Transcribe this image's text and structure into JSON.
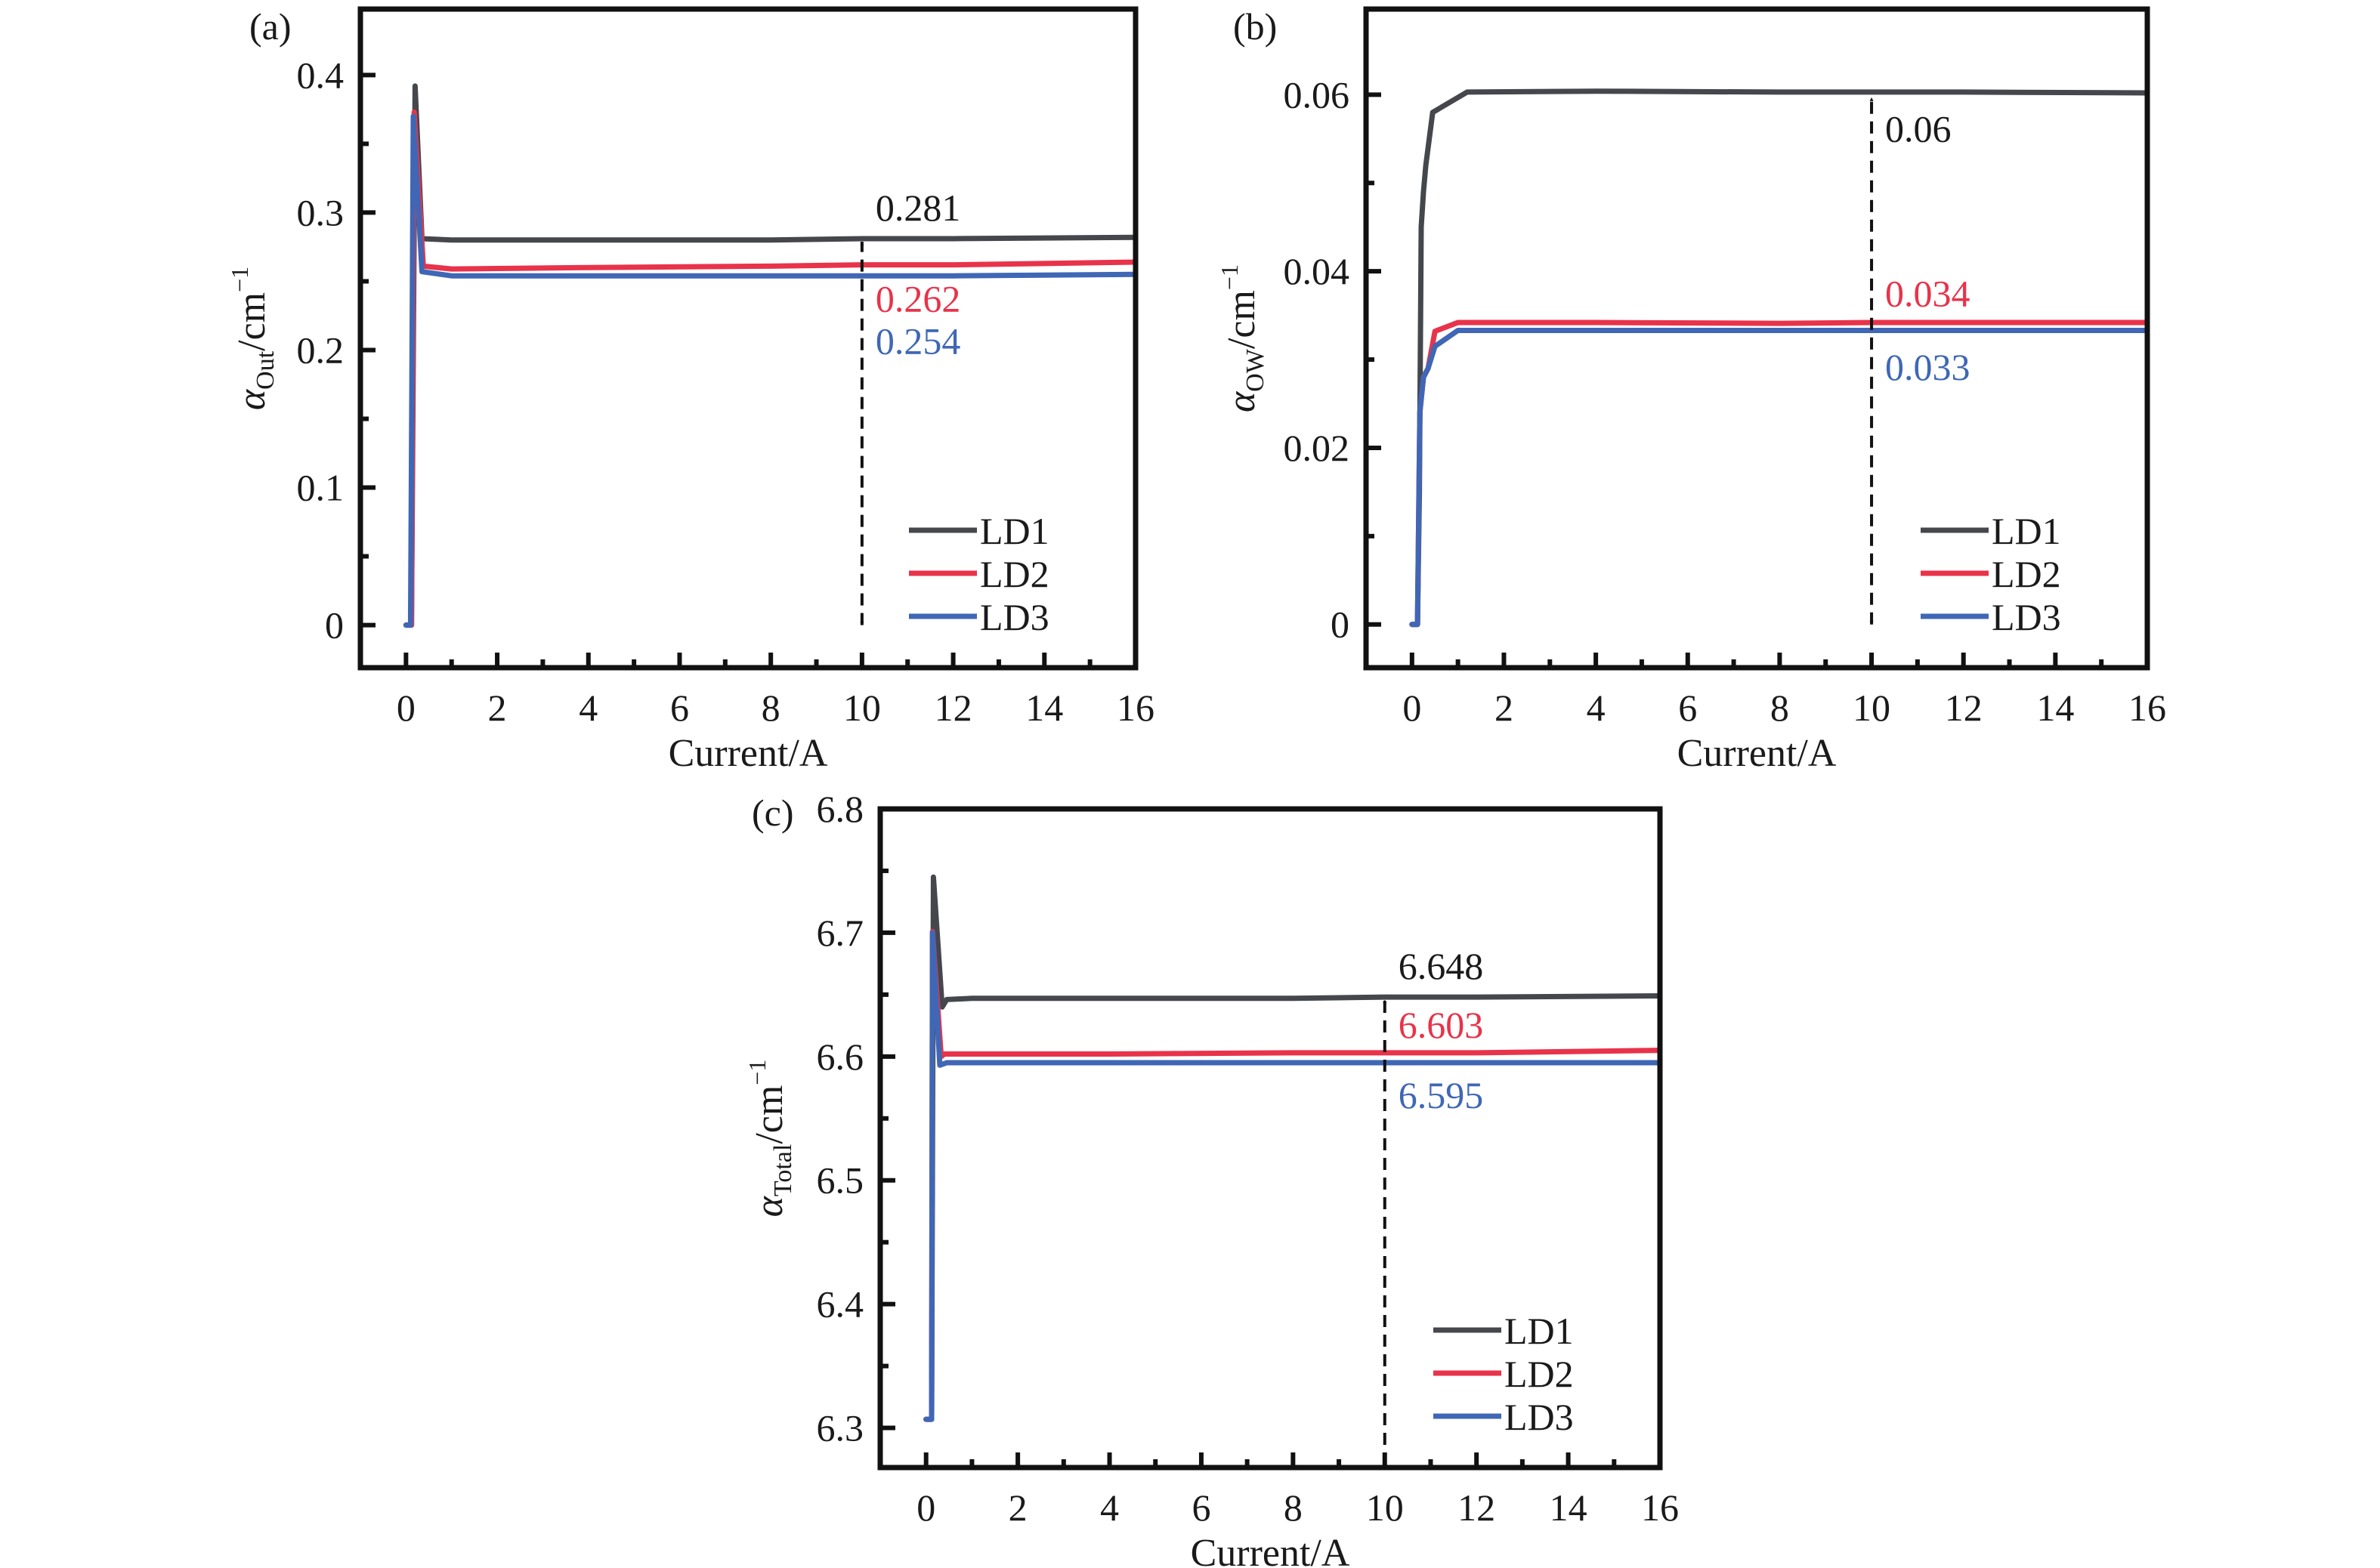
{
  "figure": {
    "colors": {
      "LD1": "#45474d",
      "LD2": "#e8334a",
      "LD3": "#3f67b5",
      "axis": "#111111"
    }
  },
  "chart_data": [
    {
      "type": "line",
      "panel_label": "(a)",
      "title": "",
      "xlabel": "Current/A",
      "ylabel": {
        "symbol": "α",
        "subscript": "Out",
        "unit": "/cm",
        "superscript": "−1"
      },
      "xlim": [
        -1,
        16
      ],
      "ylim": [
        -0.031,
        0.448
      ],
      "xticks": [
        0,
        2,
        4,
        6,
        8,
        10,
        12,
        14,
        16
      ],
      "xtick_labels": [
        "0",
        "2",
        "4",
        "6",
        "8",
        "10",
        "12",
        "14",
        "16"
      ],
      "yticks": [
        0,
        0.1,
        0.2,
        0.3,
        0.4
      ],
      "ytick_labels": [
        "0",
        "0.1",
        "0.2",
        "0.3",
        "0.4"
      ],
      "grid": false,
      "legend": {
        "placement": "bottom-right",
        "entries": [
          "LD1",
          "LD2",
          "LD3"
        ]
      },
      "series": [
        {
          "name": "LD1",
          "x": [
            0,
            0.12,
            0.2,
            0.35,
            1,
            4,
            8,
            10,
            12,
            16
          ],
          "y": [
            0,
            0,
            0.392,
            0.281,
            0.28,
            0.28,
            0.28,
            0.281,
            0.281,
            0.282
          ]
        },
        {
          "name": "LD2",
          "x": [
            0,
            0.12,
            0.18,
            0.38,
            1,
            4,
            8,
            10,
            12,
            16
          ],
          "y": [
            0,
            0,
            0.373,
            0.261,
            0.259,
            0.26,
            0.261,
            0.262,
            0.262,
            0.264
          ]
        },
        {
          "name": "LD3",
          "x": [
            0,
            0.1,
            0.16,
            0.35,
            1,
            4,
            8,
            10,
            12,
            16
          ],
          "y": [
            0,
            0,
            0.37,
            0.257,
            0.254,
            0.254,
            0.254,
            0.254,
            0.254,
            0.255
          ]
        }
      ],
      "annotations": [
        {
          "text": "0.281",
          "series": "LD1",
          "x": 10,
          "y": 0.281,
          "position": "above"
        },
        {
          "text": "0.262",
          "series": "LD2",
          "x": 10,
          "y": 0.262,
          "position": "below"
        },
        {
          "text": "0.254",
          "series": "LD3",
          "x": 10,
          "y": 0.254,
          "position": "below"
        }
      ],
      "marker_arrow": {
        "style": "dashed double arrow",
        "x": 10,
        "y_from": 0,
        "y_to": 0.281
      }
    },
    {
      "type": "line",
      "panel_label": "(b)",
      "title": "",
      "xlabel": "Current/A",
      "ylabel": {
        "symbol": "α",
        "subscript": "OW",
        "unit": "/cm",
        "superscript": "−1"
      },
      "xlim": [
        -1,
        16
      ],
      "ylim": [
        -0.0049,
        0.0697
      ],
      "xticks": [
        0,
        2,
        4,
        6,
        8,
        10,
        12,
        14,
        16
      ],
      "xtick_labels": [
        "0",
        "2",
        "4",
        "6",
        "8",
        "10",
        "12",
        "14",
        "16"
      ],
      "yticks": [
        0,
        0.02,
        0.04,
        0.06
      ],
      "ytick_labels": [
        "0",
        "0.02",
        "0.04",
        "0.06"
      ],
      "grid": false,
      "legend": {
        "placement": "bottom-right",
        "entries": [
          "LD1",
          "LD2",
          "LD3"
        ]
      },
      "series": [
        {
          "name": "LD1",
          "x": [
            0,
            0.12,
            0.16,
            0.2,
            0.25,
            0.3,
            0.45,
            1.2,
            4,
            8,
            10,
            12,
            16
          ],
          "y": [
            0,
            0,
            0.015,
            0.045,
            0.049,
            0.052,
            0.058,
            0.0603,
            0.0604,
            0.0603,
            0.0603,
            0.0603,
            0.0602
          ]
        },
        {
          "name": "LD2",
          "x": [
            0,
            0.12,
            0.17,
            0.25,
            0.35,
            0.5,
            1,
            4,
            8,
            10,
            12,
            16
          ],
          "y": [
            0,
            0,
            0.024,
            0.028,
            0.029,
            0.0332,
            0.0342,
            0.0342,
            0.0341,
            0.0342,
            0.0342,
            0.0342
          ]
        },
        {
          "name": "LD3",
          "x": [
            0,
            0.12,
            0.17,
            0.25,
            0.35,
            0.5,
            1,
            4,
            8,
            10,
            12,
            16
          ],
          "y": [
            0,
            0,
            0.024,
            0.028,
            0.029,
            0.0315,
            0.0333,
            0.0333,
            0.0333,
            0.0333,
            0.0333,
            0.0333
          ]
        }
      ],
      "annotations": [
        {
          "text": "0.06",
          "series": "LD1",
          "x": 10,
          "y": 0.06,
          "position": "below"
        },
        {
          "text": "0.034",
          "series": "LD2",
          "x": 10,
          "y": 0.034,
          "position": "above"
        },
        {
          "text": "0.033",
          "series": "LD3",
          "x": 10,
          "y": 0.033,
          "position": "below"
        }
      ],
      "marker_arrow": {
        "style": "dashed double arrow",
        "x": 10,
        "y_from": 0,
        "y_to": 0.06
      }
    },
    {
      "type": "line",
      "panel_label": "(c)",
      "title": "",
      "xlabel": "Current/A",
      "ylabel": {
        "symbol": "α",
        "subscript": "Total",
        "unit": "/cm",
        "superscript": "−1"
      },
      "xlim": [
        -1,
        16
      ],
      "ylim": [
        6.268,
        6.8
      ],
      "xticks": [
        0,
        2,
        4,
        6,
        8,
        10,
        12,
        14,
        16
      ],
      "xtick_labels": [
        "0",
        "2",
        "4",
        "6",
        "8",
        "10",
        "12",
        "14",
        "16"
      ],
      "yticks": [
        6.3,
        6.4,
        6.5,
        6.6,
        6.7,
        6.8
      ],
      "ytick_labels": [
        "6.3",
        "6.4",
        "6.5",
        "6.6",
        "6.7",
        "6.8"
      ],
      "grid": false,
      "legend": {
        "placement": "bottom-right",
        "entries": [
          "LD1",
          "LD2",
          "LD3"
        ]
      },
      "series": [
        {
          "name": "LD1",
          "x": [
            0,
            0.12,
            0.16,
            0.35,
            0.45,
            1,
            4,
            8,
            10,
            12,
            16
          ],
          "y": [
            6.307,
            6.307,
            6.745,
            6.64,
            6.646,
            6.647,
            6.647,
            6.647,
            6.648,
            6.648,
            6.649
          ]
        },
        {
          "name": "LD2",
          "x": [
            0,
            0.12,
            0.14,
            0.33,
            0.4,
            1,
            4,
            8,
            10,
            12,
            16
          ],
          "y": [
            6.307,
            6.307,
            6.701,
            6.6,
            6.602,
            6.602,
            6.602,
            6.603,
            6.603,
            6.603,
            6.605
          ]
        },
        {
          "name": "LD3",
          "x": [
            0,
            0.12,
            0.14,
            0.3,
            0.45,
            1,
            4,
            8,
            10,
            12,
            16
          ],
          "y": [
            6.307,
            6.307,
            6.7,
            6.593,
            6.595,
            6.595,
            6.595,
            6.595,
            6.595,
            6.595,
            6.595
          ]
        }
      ],
      "annotations": [
        {
          "text": "6.648",
          "series": "LD1",
          "x": 10,
          "y": 6.648,
          "position": "above"
        },
        {
          "text": "6.603",
          "series": "LD2",
          "x": 10,
          "y": 6.603,
          "position": "above"
        },
        {
          "text": "6.595",
          "series": "LD3",
          "x": 10,
          "y": 6.595,
          "position": "below"
        }
      ],
      "marker_arrow": {
        "style": "dashed double arrow",
        "x": 10,
        "y_from": 6.268,
        "y_to": 6.648
      }
    }
  ]
}
